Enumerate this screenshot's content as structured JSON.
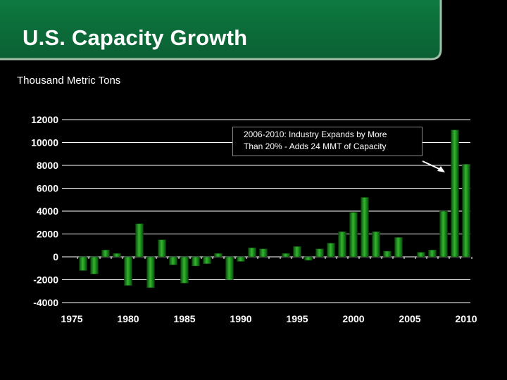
{
  "title": "U.S. Capacity Growth",
  "unit_label": "Thousand Metric Tons",
  "colors": {
    "background": "#000000",
    "banner": "#0f6a3a",
    "bar": "#1a9a1a",
    "text": "#ffffff",
    "grid": "#ffffff"
  },
  "annotation": {
    "line1": "2006-2010: Industry Expands by More",
    "line2": "Than 20% - Adds 24 MMT of Capacity",
    "arrow": "arrow-pointing-to-2009-bar"
  },
  "chart_data": {
    "type": "bar",
    "x": [
      1976,
      1977,
      1978,
      1979,
      1980,
      1981,
      1982,
      1983,
      1984,
      1985,
      1986,
      1987,
      1988,
      1989,
      1990,
      1991,
      1992,
      1993,
      1994,
      1995,
      1996,
      1997,
      1998,
      1999,
      2000,
      2001,
      2002,
      2003,
      2004,
      2005,
      2006,
      2007,
      2008,
      2009,
      2010
    ],
    "values": [
      -1200,
      -1500,
      600,
      300,
      -2500,
      2900,
      -2700,
      1500,
      -700,
      -2300,
      -800,
      -600,
      300,
      -2000,
      -400,
      800,
      700,
      0,
      300,
      900,
      -300,
      700,
      1200,
      2200,
      3900,
      5200,
      2200,
      500,
      1700,
      0,
      400,
      600,
      4000,
      11100,
      8100
    ],
    "title": "",
    "xlabel": "",
    "ylabel": "Thousand Metric Tons",
    "ylim": [
      -4000,
      12000
    ],
    "xlim": [
      1975,
      2010
    ],
    "yticks": [
      "12000",
      "10000",
      "8000",
      "6000",
      "4000",
      "2000",
      "0",
      "-2000",
      "-4000"
    ],
    "xticks": [
      "1975",
      "1980",
      "1985",
      "1990",
      "1995",
      "2000",
      "2005",
      "2010"
    ],
    "grid": true,
    "legend": "none"
  }
}
